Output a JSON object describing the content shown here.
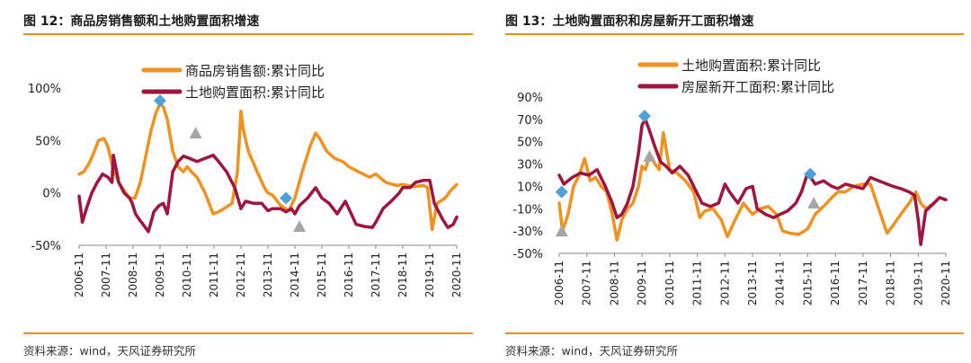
{
  "colors": {
    "orange": "#f0921f",
    "crimson": "#a0153e",
    "blue": "#4f9fd8",
    "gray": "#a6a6a6",
    "rule": "#e8912a"
  },
  "chart_data": [
    {
      "type": "line",
      "title": "图 12：商品房销售额和土地购置面积增速",
      "source": "资料来源：wind，天风证券研究所",
      "y_ticks": [
        "100%",
        "50%",
        "0%",
        "-50%"
      ],
      "ylim": [
        -50,
        100
      ],
      "x_ticks": [
        "2006-11",
        "2007-11",
        "2008-11",
        "2009-11",
        "2010-11",
        "2011-11",
        "2012-11",
        "2013-11",
        "2014-11",
        "2015-11",
        "2016-11",
        "2017-11",
        "2018-11",
        "2019-11",
        "2020-11"
      ],
      "legend_position": "top-center",
      "series": [
        {
          "name": "商品房销售额:累计同比",
          "color": "orange",
          "x": [
            2006.83,
            2007.0,
            2007.2,
            2007.4,
            2007.55,
            2007.75,
            2007.9,
            2008.1,
            2008.3,
            2008.5,
            2008.7,
            2008.9,
            2009.1,
            2009.3,
            2009.5,
            2009.7,
            2009.83,
            2009.95,
            2010.1,
            2010.3,
            2010.5,
            2010.7,
            2010.83,
            2011.0,
            2011.2,
            2011.5,
            2011.8,
            2012.0,
            2012.2,
            2012.5,
            2012.7,
            2012.83,
            2012.92,
            2013.1,
            2013.4,
            2013.7,
            2013.83,
            2014.0,
            2014.3,
            2014.6,
            2014.83,
            2015.1,
            2015.4,
            2015.6,
            2015.75,
            2016.0,
            2016.3,
            2016.6,
            2016.83,
            2017.2,
            2017.6,
            2017.83,
            2018.2,
            2018.6,
            2018.83,
            2019.2,
            2019.6,
            2019.75,
            2019.92,
            2020.1,
            2020.4,
            2020.6,
            2020.83
          ],
          "values": [
            18,
            20,
            28,
            40,
            50,
            52,
            44,
            22,
            10,
            2,
            -5,
            -5,
            10,
            35,
            60,
            78,
            85,
            82,
            70,
            40,
            25,
            20,
            25,
            20,
            15,
            0,
            -20,
            -18,
            -15,
            -10,
            20,
            78,
            60,
            40,
            22,
            5,
            0,
            -2,
            -12,
            -17,
            -5,
            20,
            45,
            57,
            52,
            40,
            33,
            30,
            25,
            20,
            15,
            18,
            10,
            7,
            8,
            6,
            7,
            5,
            -35,
            -10,
            -5,
            2,
            8
          ]
        },
        {
          "name": "土地购置面积:累计同比",
          "color": "crimson",
          "x": [
            2006.83,
            2006.95,
            2007.1,
            2007.3,
            2007.5,
            2007.7,
            2007.9,
            2008.05,
            2008.1,
            2008.3,
            2008.5,
            2008.7,
            2008.8,
            2008.92,
            2009.05,
            2009.2,
            2009.4,
            2009.6,
            2009.8,
            2009.95,
            2010.1,
            2010.3,
            2010.5,
            2010.7,
            2010.92,
            2011.2,
            2011.5,
            2011.8,
            2012.0,
            2012.3,
            2012.6,
            2012.83,
            2013.0,
            2013.3,
            2013.6,
            2013.83,
            2014.0,
            2014.3,
            2014.5,
            2014.7,
            2014.83,
            2015.0,
            2015.3,
            2015.6,
            2015.83,
            2016.1,
            2016.4,
            2016.7,
            2016.83,
            2017.1,
            2017.4,
            2017.7,
            2017.83,
            2018.1,
            2018.4,
            2018.7,
            2018.83,
            2019.1,
            2019.3,
            2019.6,
            2019.83,
            2020.0,
            2020.3,
            2020.5,
            2020.7,
            2020.83
          ],
          "values": [
            -3,
            -28,
            -15,
            0,
            10,
            18,
            15,
            10,
            36,
            10,
            0,
            -5,
            -10,
            -20,
            -25,
            -30,
            -37,
            -18,
            -12,
            -10,
            -20,
            20,
            30,
            35,
            33,
            30,
            33,
            36,
            30,
            20,
            5,
            -15,
            -8,
            -10,
            -10,
            -17,
            -15,
            -15,
            -18,
            -15,
            -20,
            -12,
            -5,
            5,
            -5,
            -10,
            -20,
            -8,
            -15,
            -30,
            -32,
            -33,
            -28,
            -15,
            -8,
            0,
            5,
            5,
            10,
            12,
            12,
            -10,
            -25,
            -33,
            -30,
            -23
          ]
        }
      ],
      "annotations": [
        {
          "x": 2009.83,
          "y": 88,
          "shape": "diamond",
          "color": "blue"
        },
        {
          "x": 2011.15,
          "y": 57,
          "shape": "triangle",
          "color": "gray"
        },
        {
          "x": 2014.5,
          "y": -5,
          "shape": "diamond",
          "color": "blue"
        },
        {
          "x": 2015.0,
          "y": -32,
          "shape": "triangle",
          "color": "gray"
        }
      ]
    },
    {
      "type": "line",
      "title": "图 13：土地购置面积和房屋新开工面积增速",
      "source": "资料来源：wind，天风证券研究所",
      "y_ticks": [
        "90%",
        "70%",
        "50%",
        "30%",
        "10%",
        "-10%",
        "-30%",
        "-50%"
      ],
      "ylim": [
        -50,
        90
      ],
      "x_ticks": [
        "2006-11",
        "2007-11",
        "2008-11",
        "2009-11",
        "2010-11",
        "2011-11",
        "2012-11",
        "2013-11",
        "2014-11",
        "2015-11",
        "2016-11",
        "2017-11",
        "2018-11",
        "2019-11",
        "2020-11"
      ],
      "legend_position": "top-center",
      "series": [
        {
          "name": "土地购置面积:累计同比",
          "color": "orange",
          "x": [
            2006.83,
            2006.95,
            2007.15,
            2007.35,
            2007.55,
            2007.75,
            2007.95,
            2008.15,
            2008.35,
            2008.55,
            2008.75,
            2008.92,
            2009.1,
            2009.3,
            2009.5,
            2009.7,
            2009.83,
            2009.95,
            2010.1,
            2010.3,
            2010.45,
            2010.6,
            2010.83,
            2011.1,
            2011.4,
            2011.7,
            2011.92,
            2012.1,
            2012.4,
            2012.7,
            2012.92,
            2013.2,
            2013.5,
            2013.83,
            2014.1,
            2014.4,
            2014.7,
            2014.92,
            2015.2,
            2015.5,
            2015.83,
            2016.1,
            2016.4,
            2016.7,
            2016.92,
            2017.2,
            2017.5,
            2017.83,
            2018.1,
            2018.4,
            2018.7,
            2018.92,
            2019.2,
            2019.5,
            2019.75,
            2019.92,
            2020.1,
            2020.4,
            2020.6,
            2020.83
          ],
          "values": [
            -5,
            -30,
            -15,
            10,
            20,
            35,
            15,
            18,
            10,
            5,
            -15,
            -38,
            -20,
            -10,
            -5,
            10,
            28,
            25,
            38,
            30,
            25,
            58,
            25,
            22,
            15,
            5,
            -18,
            -12,
            -10,
            -20,
            -35,
            -20,
            -5,
            -15,
            -10,
            -8,
            -15,
            -30,
            -32,
            -33,
            -28,
            -15,
            -8,
            0,
            5,
            5,
            10,
            12,
            12,
            -10,
            -32,
            -25,
            -15,
            -5,
            5,
            -5,
            -10,
            -5,
            0,
            -2
          ]
        },
        {
          "name": "房屋新开工面积:累计同比",
          "color": "crimson",
          "x": [
            2006.83,
            2007.0,
            2007.3,
            2007.6,
            2007.9,
            2008.2,
            2008.5,
            2008.75,
            2008.92,
            2009.1,
            2009.3,
            2009.5,
            2009.7,
            2009.83,
            2009.95,
            2010.1,
            2010.3,
            2010.5,
            2010.7,
            2010.92,
            2011.2,
            2011.5,
            2011.8,
            2012.0,
            2012.3,
            2012.6,
            2012.83,
            2013.0,
            2013.3,
            2013.6,
            2013.83,
            2014.0,
            2014.3,
            2014.6,
            2014.83,
            2015.1,
            2015.4,
            2015.6,
            2015.83,
            2016.1,
            2016.4,
            2016.7,
            2016.92,
            2017.2,
            2017.5,
            2017.83,
            2018.1,
            2018.4,
            2018.7,
            2018.92,
            2019.2,
            2019.5,
            2019.7,
            2019.83,
            2019.92,
            2020.1,
            2020.4,
            2020.6,
            2020.83
          ],
          "values": [
            20,
            12,
            18,
            22,
            20,
            25,
            10,
            -5,
            -18,
            -15,
            -5,
            10,
            40,
            65,
            70,
            60,
            45,
            32,
            28,
            22,
            28,
            20,
            5,
            -5,
            -8,
            -5,
            12,
            5,
            -5,
            8,
            10,
            -10,
            -15,
            -18,
            -15,
            -12,
            -5,
            5,
            22,
            12,
            15,
            10,
            8,
            12,
            10,
            8,
            18,
            15,
            12,
            10,
            8,
            5,
            2,
            -20,
            -42,
            -12,
            -5,
            0,
            -2
          ]
        }
      ],
      "annotations": [
        {
          "x": 2006.92,
          "y": 5,
          "shape": "diamond",
          "color": "blue"
        },
        {
          "x": 2006.92,
          "y": -30,
          "shape": "triangle",
          "color": "gray"
        },
        {
          "x": 2009.92,
          "y": 73,
          "shape": "diamond",
          "color": "blue"
        },
        {
          "x": 2010.1,
          "y": 37,
          "shape": "triangle",
          "color": "gray"
        },
        {
          "x": 2015.92,
          "y": 21,
          "shape": "diamond",
          "color": "blue"
        },
        {
          "x": 2016.05,
          "y": -5,
          "shape": "triangle",
          "color": "gray"
        }
      ]
    }
  ]
}
